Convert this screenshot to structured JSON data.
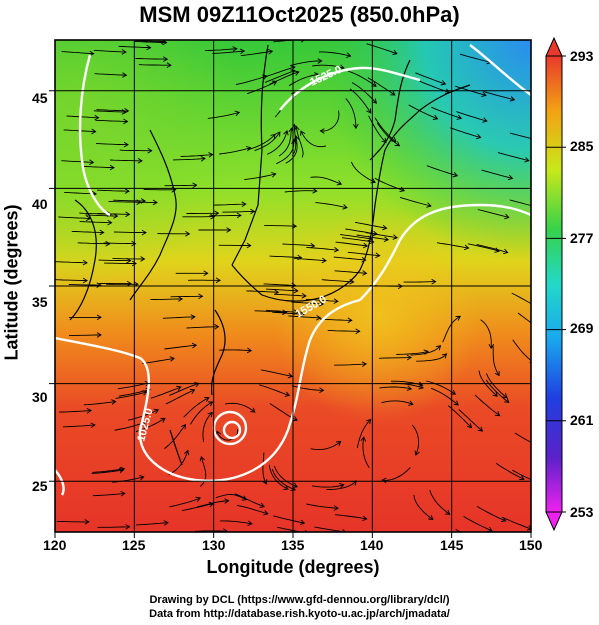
{
  "title": "MSM 09Z11Oct2025 (850.0hPa)",
  "x_axis": {
    "label": "Longitude (degrees)",
    "range": [
      120,
      150
    ],
    "ticks": [
      "120",
      "125",
      "130",
      "135",
      "140",
      "145",
      "150"
    ]
  },
  "y_axis": {
    "label": "Latitude  (degrees)",
    "range": [
      22.4,
      47.6
    ],
    "ticks": [
      "25",
      "30",
      "35",
      "40",
      "45"
    ]
  },
  "colorbar": {
    "range": [
      253,
      293
    ],
    "labels": [
      "293",
      "285",
      "277",
      "269",
      "261",
      "253"
    ]
  },
  "contour_labels": [
    "1525.0",
    "1550.0",
    "1025.0"
  ],
  "credits": {
    "line1": "Drawing by DCL (https://www.gfd-dennou.org/library/dcl/)",
    "line2": "Data from http://database.rish.kyoto-u.ac.jp/arch/jmadata/"
  }
}
